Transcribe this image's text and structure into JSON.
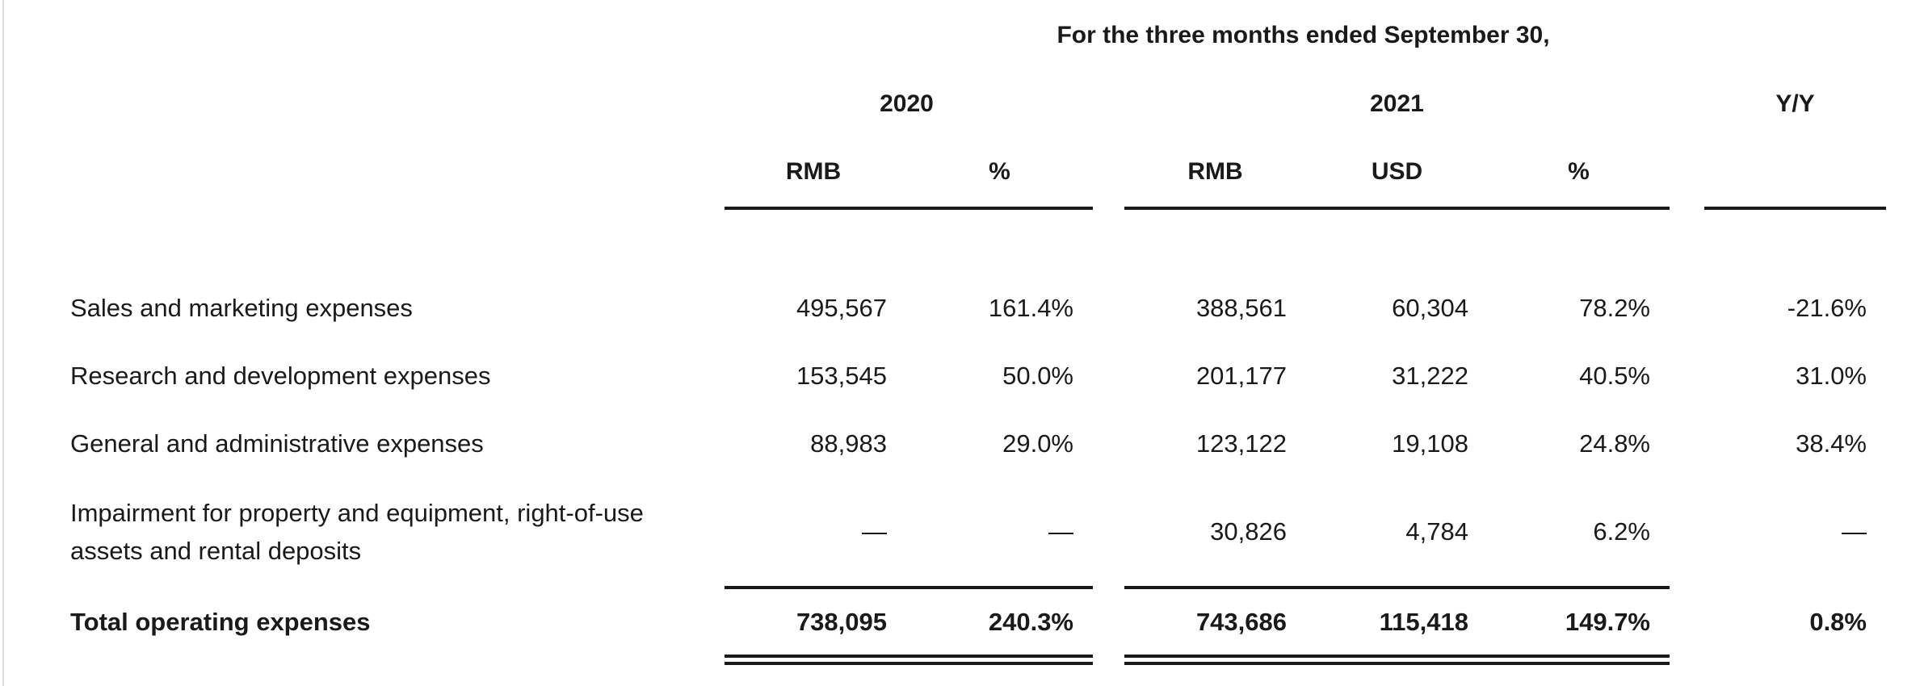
{
  "colors": {
    "background": "#ffffff",
    "text": "#1a1a1a",
    "rule": "#1a1a1a",
    "edge_line": "#dcdcdc"
  },
  "table": {
    "title": "For the three months ended September 30,",
    "group_2020": "2020",
    "group_2021": "2021",
    "group_yy": "Y/Y",
    "headers": {
      "rmb_2020": "RMB",
      "pct_2020": "%",
      "rmb_2021": "RMB",
      "usd_2021": "USD",
      "pct_2021": "%"
    },
    "rows": [
      {
        "label": "Sales and marketing expenses",
        "rmb_2020": "495,567",
        "pct_2020": "161.4%",
        "rmb_2021": "388,561",
        "usd_2021": "60,304",
        "pct_2021": "78.2%",
        "yy": "-21.6%"
      },
      {
        "label": "Research and development expenses",
        "rmb_2020": "153,545",
        "pct_2020": "50.0%",
        "rmb_2021": "201,177",
        "usd_2021": "31,222",
        "pct_2021": "40.5%",
        "yy": "31.0%"
      },
      {
        "label": "General and administrative expenses",
        "rmb_2020": "88,983",
        "pct_2020": "29.0%",
        "rmb_2021": "123,122",
        "usd_2021": "19,108",
        "pct_2021": "24.8%",
        "yy": "38.4%"
      },
      {
        "label": "Impairment for property and equipment, right-of-use assets and rental deposits",
        "rmb_2020": "—",
        "pct_2020": "—",
        "rmb_2021": "30,826",
        "usd_2021": "4,784",
        "pct_2021": "6.2%",
        "yy": "—"
      }
    ],
    "total_row": {
      "label": "Total operating expenses",
      "rmb_2020": "738,095",
      "pct_2020": "240.3%",
      "rmb_2021": "743,686",
      "usd_2021": "115,418",
      "pct_2021": "149.7%",
      "yy": "0.8%"
    }
  }
}
